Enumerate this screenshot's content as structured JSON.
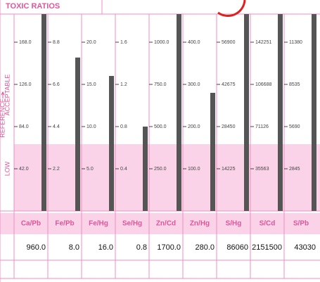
{
  "header": {
    "title": "TOXIC RATIOS"
  },
  "side_labels": {
    "reference": "REFERENCE",
    "acceptable": "ACCEPTABLE",
    "low": "LOW"
  },
  "columns": [
    {
      "name": "Ca/Pb",
      "value": 960,
      "value_label": "960.0",
      "scale": [
        {
          "value": 42,
          "label": "42.0"
        },
        {
          "value": 84,
          "label": "84.0"
        },
        {
          "value": 126,
          "label": "126.0"
        },
        {
          "value": 168,
          "label": "168.0"
        }
      ]
    },
    {
      "name": "Fe/Pb",
      "value": 8,
      "value_label": "8.0",
      "scale": [
        2.2,
        4.4,
        6.6,
        8.8
      ]
    },
    {
      "name": "Fe/Hg",
      "value": 16,
      "value_label": "16.0",
      "scale": [
        {
          "value": 5,
          "label": "5.0"
        },
        {
          "value": 10,
          "label": "10.0"
        },
        {
          "value": 15,
          "label": "15.0"
        },
        {
          "value": 20,
          "label": "20.0"
        }
      ]
    },
    {
      "name": "Se/Hg",
      "value": 0.8,
      "scale": [
        0.4,
        0.8,
        1.2,
        1.6
      ]
    },
    {
      "name": "Zn/Cd",
      "value": 1700,
      "value_label": "1700.0",
      "scale": [
        {
          "value": 250,
          "label": "250.0"
        },
        {
          "value": 500,
          "label": "500.0"
        },
        {
          "value": 750,
          "label": "750.0"
        },
        {
          "value": 1000,
          "label": "1000.0"
        }
      ]
    },
    {
      "name": "Zn/Hg",
      "value": 280,
      "value_label": "280.0",
      "scale": [
        {
          "value": 100,
          "label": "100.0"
        },
        {
          "value": 200,
          "label": "200.0"
        },
        {
          "value": 300,
          "label": "300.0"
        },
        {
          "value": 400,
          "label": "400.0"
        }
      ]
    },
    {
      "name": "S/Hg",
      "value": 86060,
      "scale": [
        14225,
        28450,
        42675,
        56900
      ]
    },
    {
      "name": "S/Cd",
      "value": 2151500,
      "scale": [
        35563,
        71126,
        106688,
        142251
      ]
    },
    {
      "name": "S/Pb",
      "value": 43030,
      "scale": [
        2845,
        5690,
        8535,
        11380
      ]
    }
  ]
}
